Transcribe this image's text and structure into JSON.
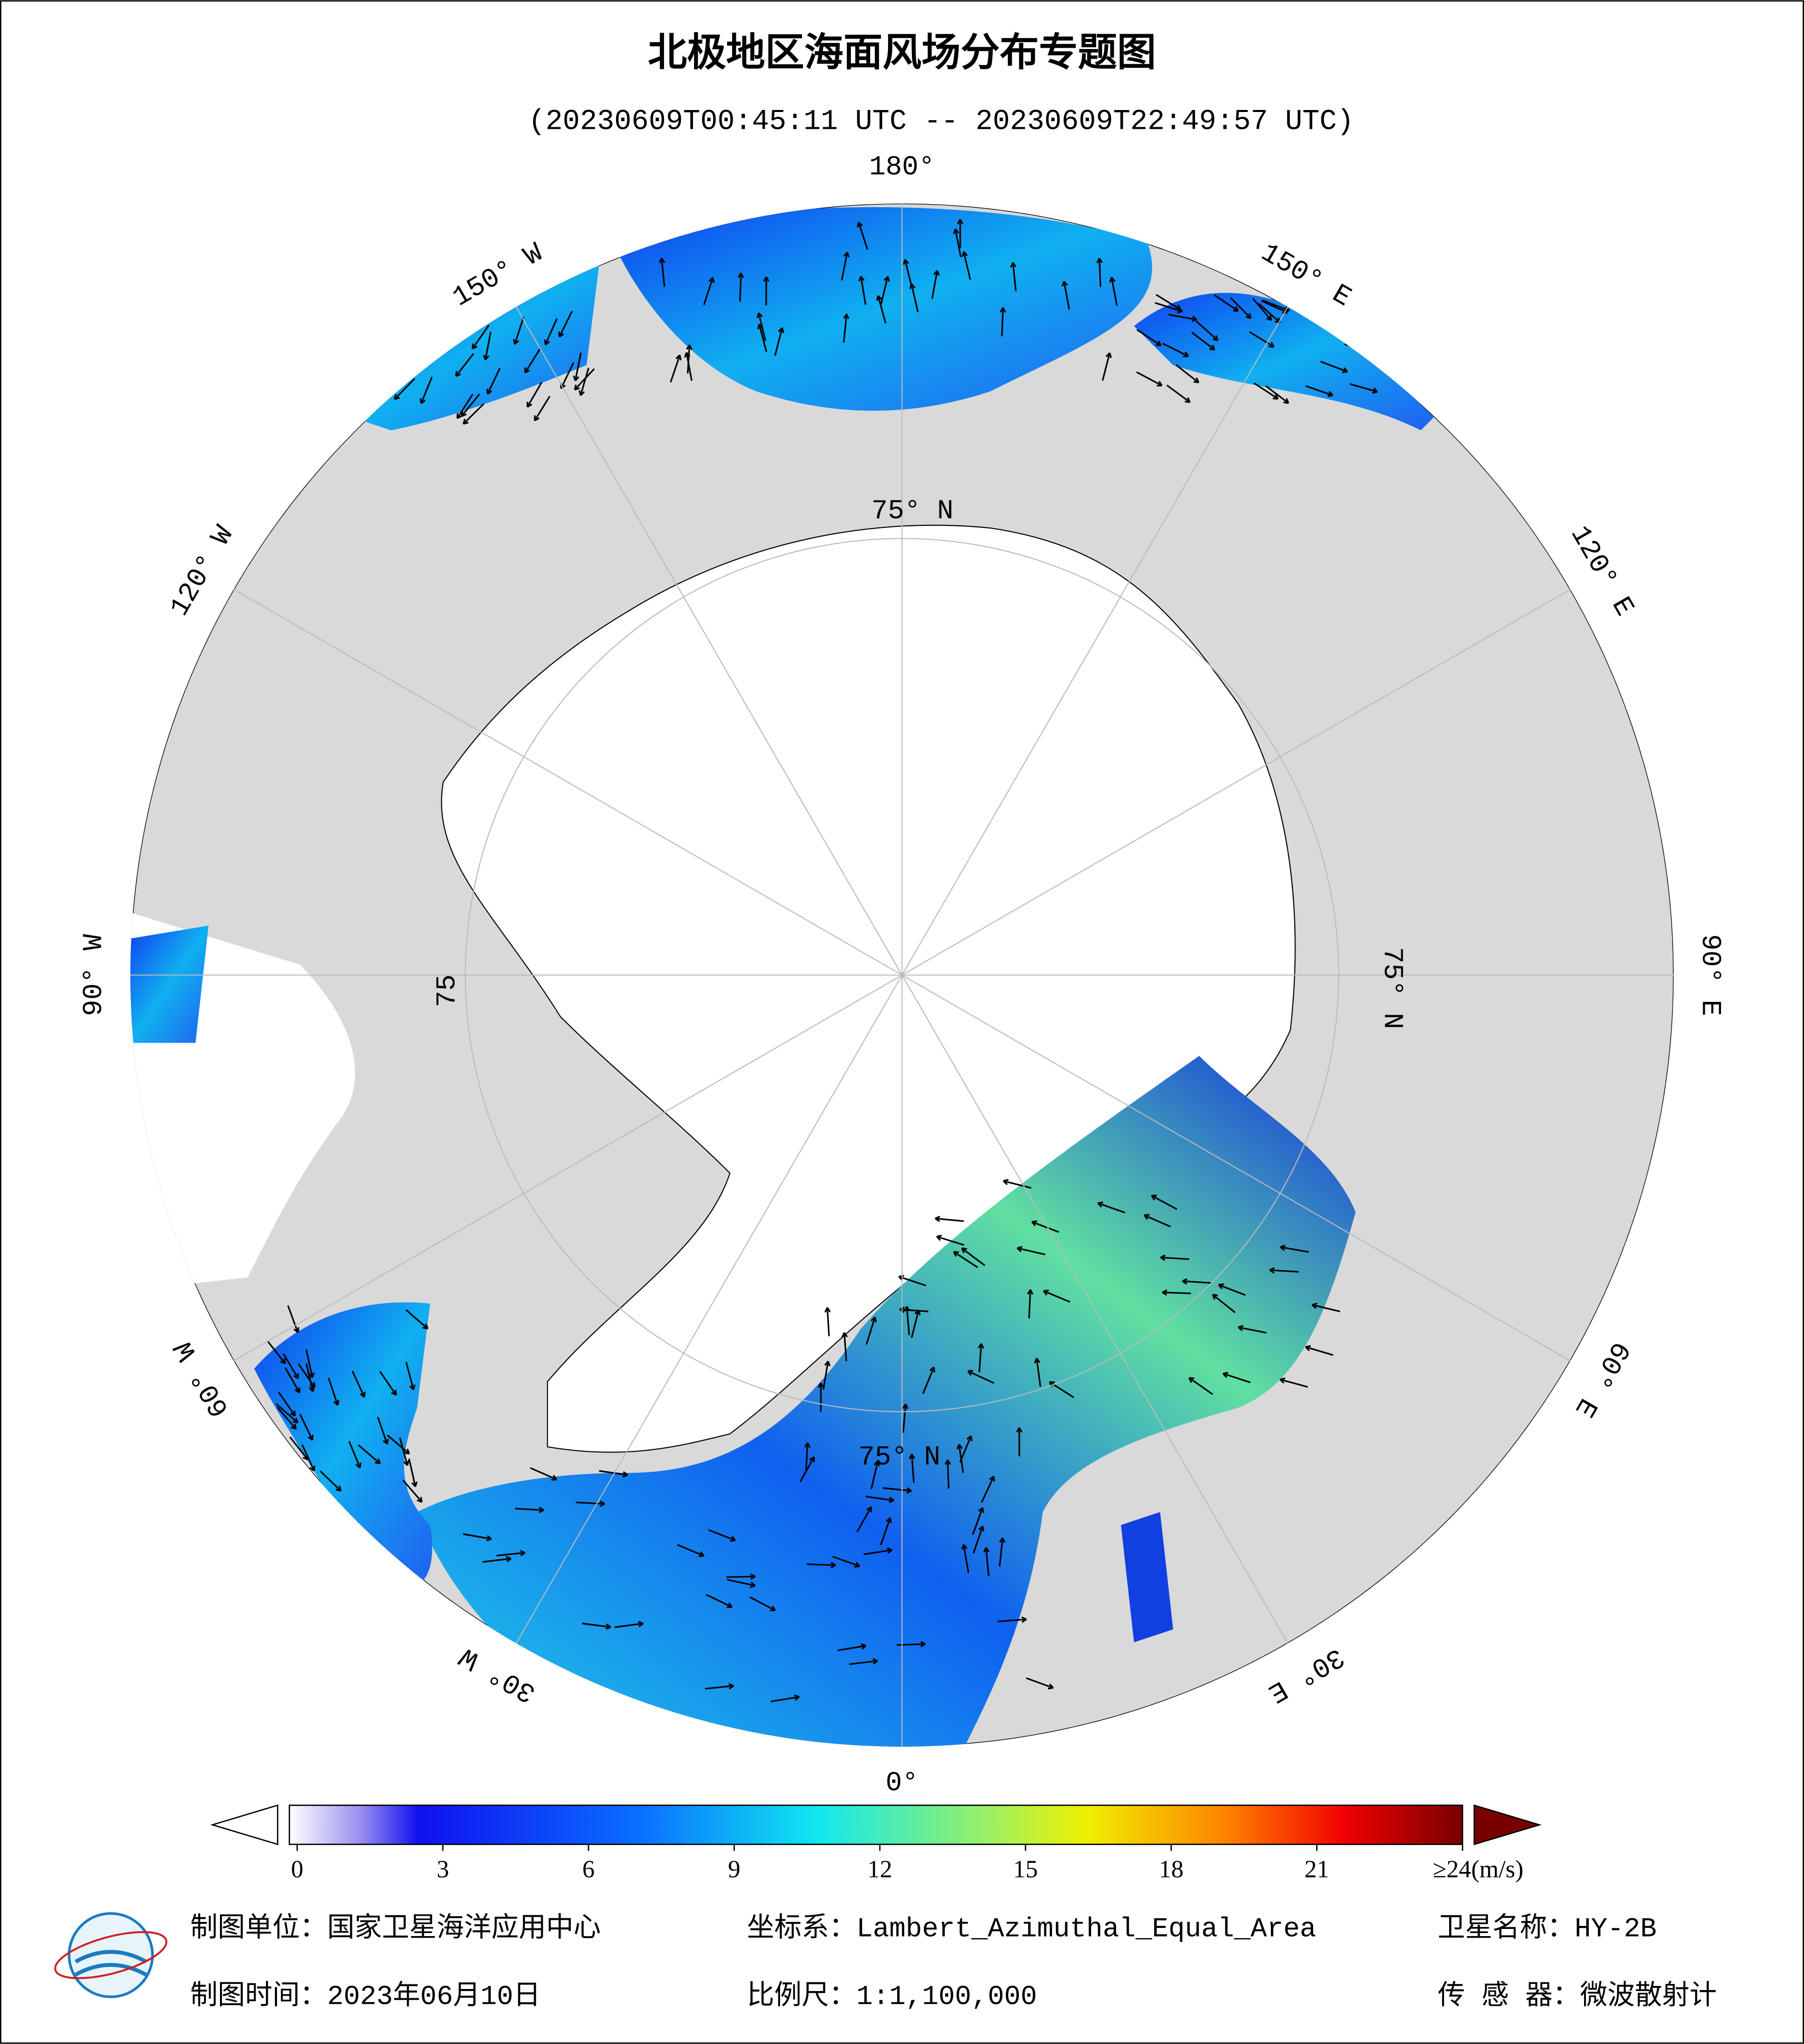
{
  "header": {
    "title": "北极地区海面风场分布专题图",
    "subtitle": "(20230609T00:45:11 UTC -- 20230609T22:49:57 UTC)"
  },
  "map": {
    "longitude_labels": [
      "180°",
      "150° W",
      "150° E",
      "120° W",
      "120° E",
      "90° W",
      "90° E",
      "60° W",
      "60° E",
      "30° W",
      "30° E",
      "0°"
    ],
    "latitude_labels": [
      "75° N",
      "75° N",
      "75",
      "75° N"
    ]
  },
  "colorbar": {
    "range": [
      0,
      24
    ],
    "ticks": [
      0,
      3,
      6,
      9,
      12,
      15,
      18,
      21,
      {
        "value": 24,
        "label": "≥24(m/s)"
      }
    ]
  },
  "footer": {
    "unit": "制图单位：国家卫星海洋应用中心",
    "projection": "坐标系：Lambert_Azimuthal_Equal_Area",
    "satellite": "卫星名称：HY-2B",
    "date": "制图时间：2023年06月10日",
    "scale": "比例尺：1:1,100,000",
    "sensor": "传 感 器：微波散射计"
  }
}
